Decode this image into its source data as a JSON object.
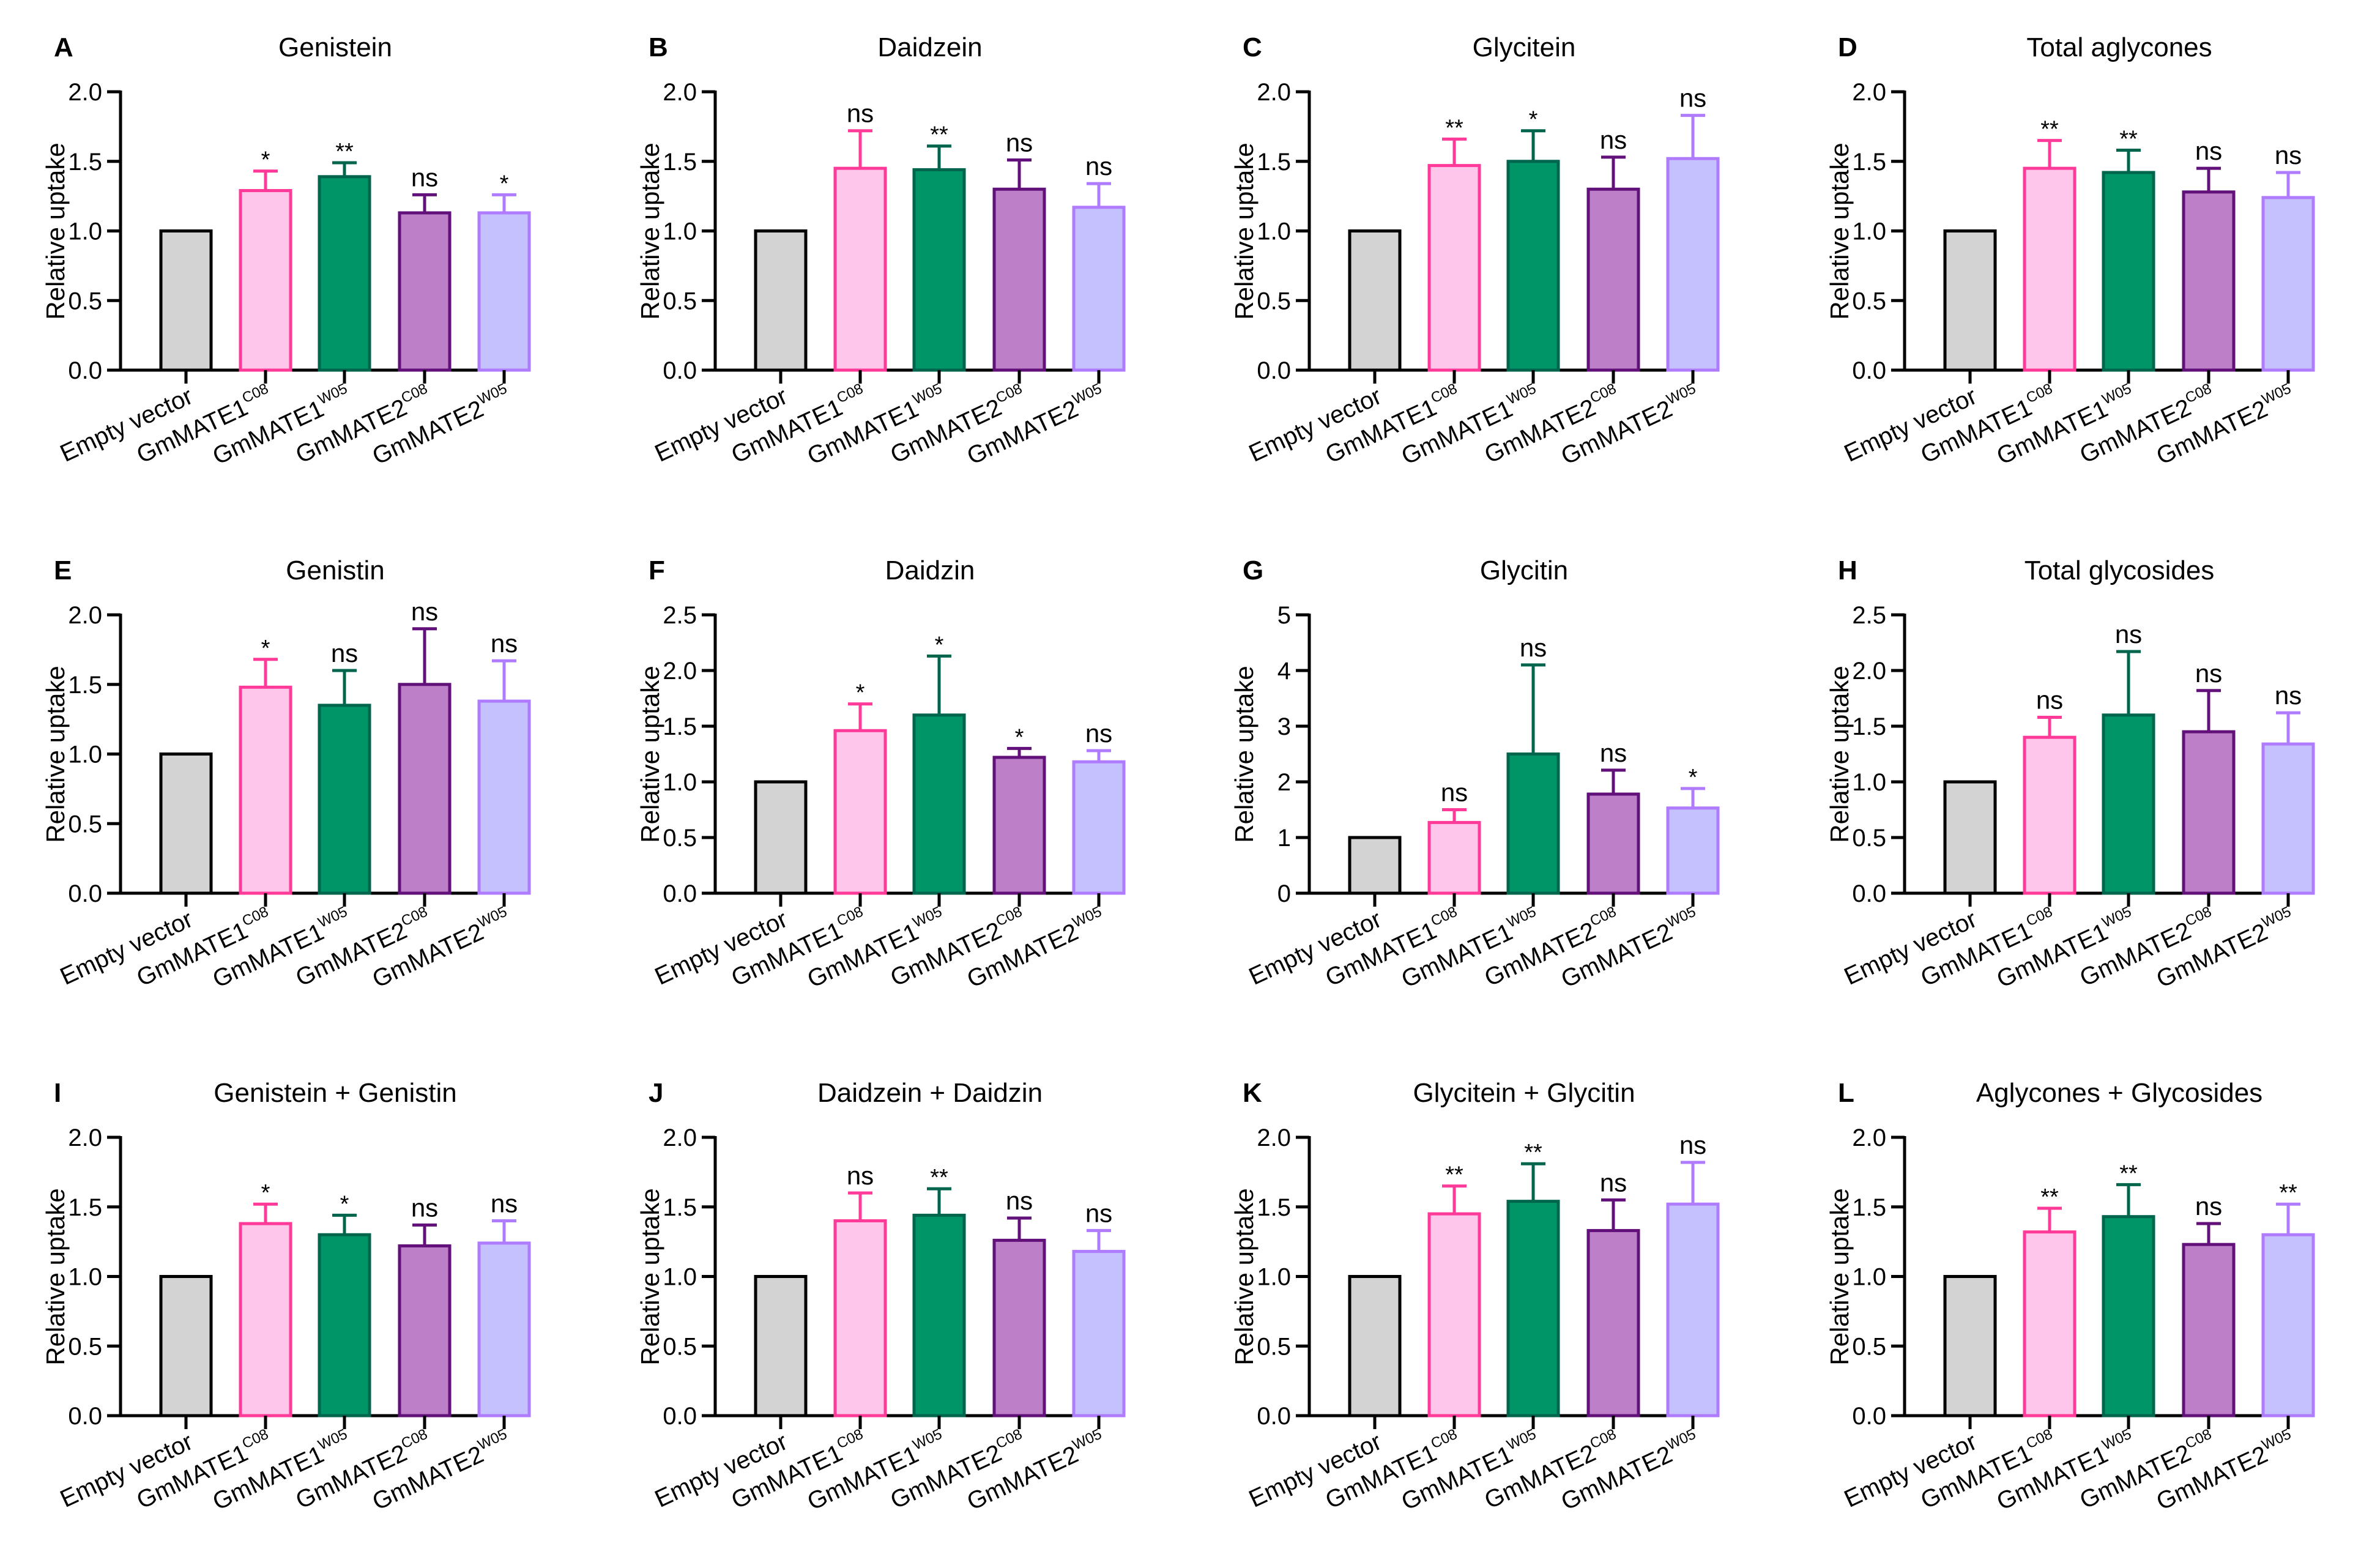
{
  "figure": {
    "ylabel": "Relative uptake",
    "category_labels": [
      {
        "base": "Empty vector",
        "sup": ""
      },
      {
        "base": "GmMATE1",
        "sup": "C08"
      },
      {
        "base": "GmMATE1",
        "sup": "W05"
      },
      {
        "base": "GmMATE2",
        "sup": "C08"
      },
      {
        "base": "GmMATE2",
        "sup": "W05"
      }
    ],
    "bar_colors": {
      "fill": [
        "#d3d3d3",
        "#fec6eb",
        "#009566",
        "#bd7fc7",
        "#c5c0fe"
      ],
      "stroke": [
        "#000000",
        "#ff3a99",
        "#00654d",
        "#62107a",
        "#b07cff"
      ]
    }
  },
  "chart_data": [
    {
      "type": "bar",
      "letter": "A",
      "title": "Genistein",
      "ylabel": "Relative uptake",
      "ylim": [
        0,
        2.0
      ],
      "ticks": [
        "0.0",
        "0.5",
        "1.0",
        "1.5",
        "2.0"
      ],
      "categories": [
        "Empty vector",
        "GmMATE1C08",
        "GmMATE1W05",
        "GmMATE2C08",
        "GmMATE2W05"
      ],
      "values": [
        1.0,
        1.29,
        1.39,
        1.13,
        1.13
      ],
      "errors": [
        0,
        0.14,
        0.1,
        0.13,
        0.13
      ],
      "significance": [
        "",
        "*",
        "**",
        "ns",
        "*"
      ]
    },
    {
      "type": "bar",
      "letter": "B",
      "title": "Daidzein",
      "ylabel": "Relative uptake",
      "ylim": [
        0,
        2.0
      ],
      "ticks": [
        "0.0",
        "0.5",
        "1.0",
        "1.5",
        "2.0"
      ],
      "categories": [
        "Empty vector",
        "GmMATE1C08",
        "GmMATE1W05",
        "GmMATE2C08",
        "GmMATE2W05"
      ],
      "values": [
        1.0,
        1.45,
        1.44,
        1.3,
        1.17
      ],
      "errors": [
        0,
        0.27,
        0.17,
        0.21,
        0.17
      ],
      "significance": [
        "",
        "ns",
        "**",
        "ns",
        "ns"
      ]
    },
    {
      "type": "bar",
      "letter": "C",
      "title": "Glycitein",
      "ylabel": "Relative uptake",
      "ylim": [
        0,
        2.0
      ],
      "ticks": [
        "0.0",
        "0.5",
        "1.0",
        "1.5",
        "2.0"
      ],
      "categories": [
        "Empty vector",
        "GmMATE1C08",
        "GmMATE1W05",
        "GmMATE2C08",
        "GmMATE2W05"
      ],
      "values": [
        1.0,
        1.47,
        1.5,
        1.3,
        1.52
      ],
      "errors": [
        0,
        0.19,
        0.22,
        0.23,
        0.31
      ],
      "significance": [
        "",
        "**",
        "*",
        "ns",
        "ns"
      ]
    },
    {
      "type": "bar",
      "letter": "D",
      "title": "Total aglycones",
      "ylabel": "Relative uptake",
      "ylim": [
        0,
        2.0
      ],
      "ticks": [
        "0.0",
        "0.5",
        "1.0",
        "1.5",
        "2.0"
      ],
      "categories": [
        "Empty vector",
        "GmMATE1C08",
        "GmMATE1W05",
        "GmMATE2C08",
        "GmMATE2W05"
      ],
      "values": [
        1.0,
        1.45,
        1.42,
        1.28,
        1.24
      ],
      "errors": [
        0,
        0.2,
        0.16,
        0.17,
        0.18
      ],
      "significance": [
        "",
        "**",
        "**",
        "ns",
        "ns"
      ]
    },
    {
      "type": "bar",
      "letter": "E",
      "title": "Genistin",
      "ylabel": "Relative uptake",
      "ylim": [
        0,
        2.0
      ],
      "ticks": [
        "0.0",
        "0.5",
        "1.0",
        "1.5",
        "2.0"
      ],
      "categories": [
        "Empty vector",
        "GmMATE1C08",
        "GmMATE1W05",
        "GmMATE2C08",
        "GmMATE2W05"
      ],
      "values": [
        1.0,
        1.48,
        1.35,
        1.5,
        1.38
      ],
      "errors": [
        0,
        0.2,
        0.25,
        0.4,
        0.29
      ],
      "significance": [
        "",
        "*",
        "ns",
        "ns",
        "ns"
      ]
    },
    {
      "type": "bar",
      "letter": "F",
      "title": "Daidzin",
      "ylabel": "Relative uptake",
      "ylim": [
        0,
        2.5
      ],
      "ticks": [
        "0.0",
        "0.5",
        "1.0",
        "1.5",
        "2.0",
        "2.5"
      ],
      "categories": [
        "Empty vector",
        "GmMATE1C08",
        "GmMATE1W05",
        "GmMATE2C08",
        "GmMATE2W05"
      ],
      "values": [
        1.0,
        1.46,
        1.6,
        1.22,
        1.18
      ],
      "errors": [
        0,
        0.24,
        0.53,
        0.08,
        0.1
      ],
      "significance": [
        "",
        "*",
        "*",
        "*",
        "ns"
      ]
    },
    {
      "type": "bar",
      "letter": "G",
      "title": "Glycitin",
      "ylabel": "Relative uptake",
      "ylim": [
        0,
        5
      ],
      "ticks": [
        "0",
        "1",
        "2",
        "3",
        "4",
        "5"
      ],
      "categories": [
        "Empty vector",
        "GmMATE1C08",
        "GmMATE1W05",
        "GmMATE2C08",
        "GmMATE2W05"
      ],
      "values": [
        1.0,
        1.27,
        2.5,
        1.78,
        1.53
      ],
      "errors": [
        0,
        0.23,
        1.6,
        0.43,
        0.35
      ],
      "significance": [
        "",
        "ns",
        "ns",
        "ns",
        "*"
      ]
    },
    {
      "type": "bar",
      "letter": "H",
      "title": "Total glycosides",
      "ylabel": "Relative uptake",
      "ylim": [
        0,
        2.5
      ],
      "ticks": [
        "0.0",
        "0.5",
        "1.0",
        "1.5",
        "2.0",
        "2.5"
      ],
      "categories": [
        "Empty vector",
        "GmMATE1C08",
        "GmMATE1W05",
        "GmMATE2C08",
        "GmMATE2W05"
      ],
      "values": [
        1.0,
        1.4,
        1.6,
        1.45,
        1.34
      ],
      "errors": [
        0,
        0.18,
        0.57,
        0.37,
        0.28
      ],
      "significance": [
        "",
        "ns",
        "ns",
        "ns",
        "ns"
      ]
    },
    {
      "type": "bar",
      "letter": "I",
      "title": "Genistein +  Genistin",
      "ylabel": "Relative uptake",
      "ylim": [
        0,
        2.0
      ],
      "ticks": [
        "0.0",
        "0.5",
        "1.0",
        "1.5",
        "2.0"
      ],
      "categories": [
        "Empty vector",
        "GmMATE1C08",
        "GmMATE1W05",
        "GmMATE2C08",
        "GmMATE2W05"
      ],
      "values": [
        1.0,
        1.38,
        1.3,
        1.22,
        1.24
      ],
      "errors": [
        0,
        0.14,
        0.14,
        0.15,
        0.16
      ],
      "significance": [
        "",
        "*",
        "*",
        "ns",
        "ns"
      ]
    },
    {
      "type": "bar",
      "letter": "J",
      "title": "Daidzein + Daidzin",
      "ylabel": "Relative uptake",
      "ylim": [
        0,
        2.0
      ],
      "ticks": [
        "0.0",
        "0.5",
        "1.0",
        "1.5",
        "2.0"
      ],
      "categories": [
        "Empty vector",
        "GmMATE1C08",
        "GmMATE1W05",
        "GmMATE2C08",
        "GmMATE2W05"
      ],
      "values": [
        1.0,
        1.4,
        1.44,
        1.26,
        1.18
      ],
      "errors": [
        0,
        0.2,
        0.19,
        0.16,
        0.15
      ],
      "significance": [
        "",
        "ns",
        "**",
        "ns",
        "ns"
      ]
    },
    {
      "type": "bar",
      "letter": "K",
      "title": "Glycitein +  Glycitin",
      "ylabel": "Relative uptake",
      "ylim": [
        0,
        2.0
      ],
      "ticks": [
        "0.0",
        "0.5",
        "1.0",
        "1.5",
        "2.0"
      ],
      "categories": [
        "Empty vector",
        "GmMATE1C08",
        "GmMATE1W05",
        "GmMATE2C08",
        "GmMATE2W05"
      ],
      "values": [
        1.0,
        1.45,
        1.54,
        1.33,
        1.52
      ],
      "errors": [
        0,
        0.2,
        0.27,
        0.22,
        0.3
      ],
      "significance": [
        "",
        "**",
        "**",
        "ns",
        "ns"
      ]
    },
    {
      "type": "bar",
      "letter": "L",
      "title": "Aglycones + Glycosides",
      "ylabel": "Relative uptake",
      "ylim": [
        0,
        2.0
      ],
      "ticks": [
        "0.0",
        "0.5",
        "1.0",
        "1.5",
        "2.0"
      ],
      "categories": [
        "Empty vector",
        "GmMATE1C08",
        "GmMATE1W05",
        "GmMATE2C08",
        "GmMATE2W05"
      ],
      "values": [
        1.0,
        1.32,
        1.43,
        1.23,
        1.3
      ],
      "errors": [
        0,
        0.17,
        0.23,
        0.15,
        0.22
      ],
      "significance": [
        "",
        "**",
        "**",
        "ns",
        "**"
      ]
    }
  ]
}
